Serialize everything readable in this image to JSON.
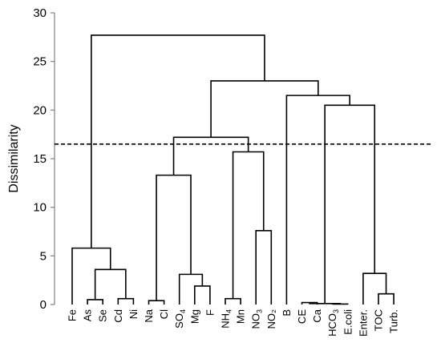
{
  "chart_data": {
    "type": "dendrogram",
    "ylabel": "Dissimilarity",
    "ylim": [
      0,
      30
    ],
    "yticks": [
      0,
      5,
      10,
      15,
      20,
      25,
      30
    ],
    "cut_line": 16.5,
    "leaves": [
      {
        "id": "Fe",
        "text": "Fe"
      },
      {
        "id": "As",
        "text": "As"
      },
      {
        "id": "Se",
        "text": "Se"
      },
      {
        "id": "Cd",
        "text": "Cd"
      },
      {
        "id": "Ni",
        "text": "Ni"
      },
      {
        "id": "Na",
        "text": "Na"
      },
      {
        "id": "Cl",
        "text": "Cl"
      },
      {
        "id": "SO4",
        "text": "SO",
        "sub": "4"
      },
      {
        "id": "Mg",
        "text": "Mg"
      },
      {
        "id": "F",
        "text": "F"
      },
      {
        "id": "NH4",
        "text": "NH",
        "sub": "4"
      },
      {
        "id": "Mn",
        "text": "Mn"
      },
      {
        "id": "NO3",
        "text": "NO",
        "sub": "3"
      },
      {
        "id": "NO2",
        "text": "NO₂"
      },
      {
        "id": "B",
        "text": "B"
      },
      {
        "id": "CE",
        "text": "CE"
      },
      {
        "id": "Ca",
        "text": "Ca"
      },
      {
        "id": "HCO3",
        "text": "HCO",
        "sub": "3"
      },
      {
        "id": "Ecoli",
        "text": "E.coli"
      },
      {
        "id": "Enter",
        "text": "Enter."
      },
      {
        "id": "TOC",
        "text": "TOC"
      },
      {
        "id": "Turb",
        "text": "Turb."
      }
    ],
    "merges": [
      {
        "left": "As",
        "right": "Se",
        "height": 0.5
      },
      {
        "left": "Cd",
        "right": "Ni",
        "height": 0.6
      },
      {
        "left": "As|Se",
        "right": "Cd|Ni",
        "height": 3.6
      },
      {
        "left": "Fe",
        "right": "As|Se|Cd|Ni",
        "height": 5.8
      },
      {
        "left": "Na",
        "right": "Cl",
        "height": 0.4
      },
      {
        "left": "Mg",
        "right": "F",
        "height": 1.9
      },
      {
        "left": "SO4",
        "right": "Mg|F",
        "height": 3.1
      },
      {
        "left": "Na|Cl",
        "right": "SO4|Mg|F",
        "height": 13.3
      },
      {
        "left": "NH4",
        "right": "Mn",
        "height": 0.6
      },
      {
        "left": "NO3",
        "right": "NO2",
        "height": 7.6
      },
      {
        "left": "NH4|Mn",
        "right": "NO3|NO2",
        "height": 15.7
      },
      {
        "left": "Na|Cl|SO4|Mg|F",
        "right": "NH4|Mn|NO3|NO2",
        "height": 17.2
      },
      {
        "left": "CE",
        "right": "Ca",
        "height": 0.2
      },
      {
        "left": "HCO3",
        "right": "Ecoli",
        "height": 0.05
      },
      {
        "left": "CE|Ca",
        "right": "HCO3|Ecoli",
        "height": 0.1
      },
      {
        "left": "TOC",
        "right": "Turb",
        "height": 1.1
      },
      {
        "left": "Enter",
        "right": "TOC|Turb",
        "height": 3.2
      },
      {
        "left": "CE|Ca|HCO3|Ecoli",
        "right": "Enter|TOC|Turb",
        "height": 20.5
      },
      {
        "left": "B",
        "right": "CE|Ca|HCO3|Ecoli|Enter|TOC|Turb",
        "height": 21.5
      },
      {
        "left": "Na|Cl|SO4|Mg|F|NH4|Mn|NO3|NO2",
        "right": "B|CE|Ca|HCO3|Ecoli|Enter|TOC|Turb",
        "height": 23.0
      },
      {
        "left": "Fe|As|Se|Cd|Ni",
        "right": "Na|Cl|SO4|Mg|F|NH4|Mn|NO3|NO2|B|CE|Ca|HCO3|Ecoli|Enter|TOC|Turb",
        "height": 27.7
      }
    ]
  }
}
